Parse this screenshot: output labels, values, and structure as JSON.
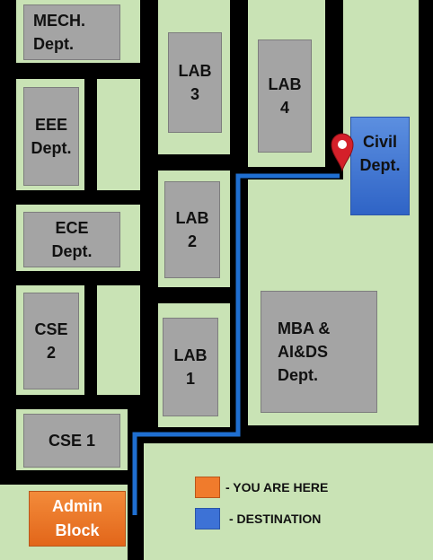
{
  "buildings": {
    "mech": "MECH.\nDept.",
    "eee": "EEE\nDept.",
    "ece": "ECE\nDept.",
    "cse2": "CSE\n2",
    "cse1": "CSE 1",
    "lab1": "LAB\n1",
    "lab2": "LAB\n2",
    "lab3": "LAB\n3",
    "lab4": "LAB\n4",
    "mba": "MBA &\nAI&DS\nDept.",
    "civil": "Civil\nDept.",
    "admin": "Admin\nBlock"
  },
  "legend": {
    "you_are_here": "- YOU ARE HERE",
    "destination": "- DESTINATION"
  },
  "colors": {
    "ground": "#c9e3b5",
    "road": "#000000",
    "building": "#a4a4a4",
    "origin": "#f07b2c",
    "destination": "#3d72d6",
    "route": "#1f6fd1",
    "pin": "#d4202a"
  }
}
